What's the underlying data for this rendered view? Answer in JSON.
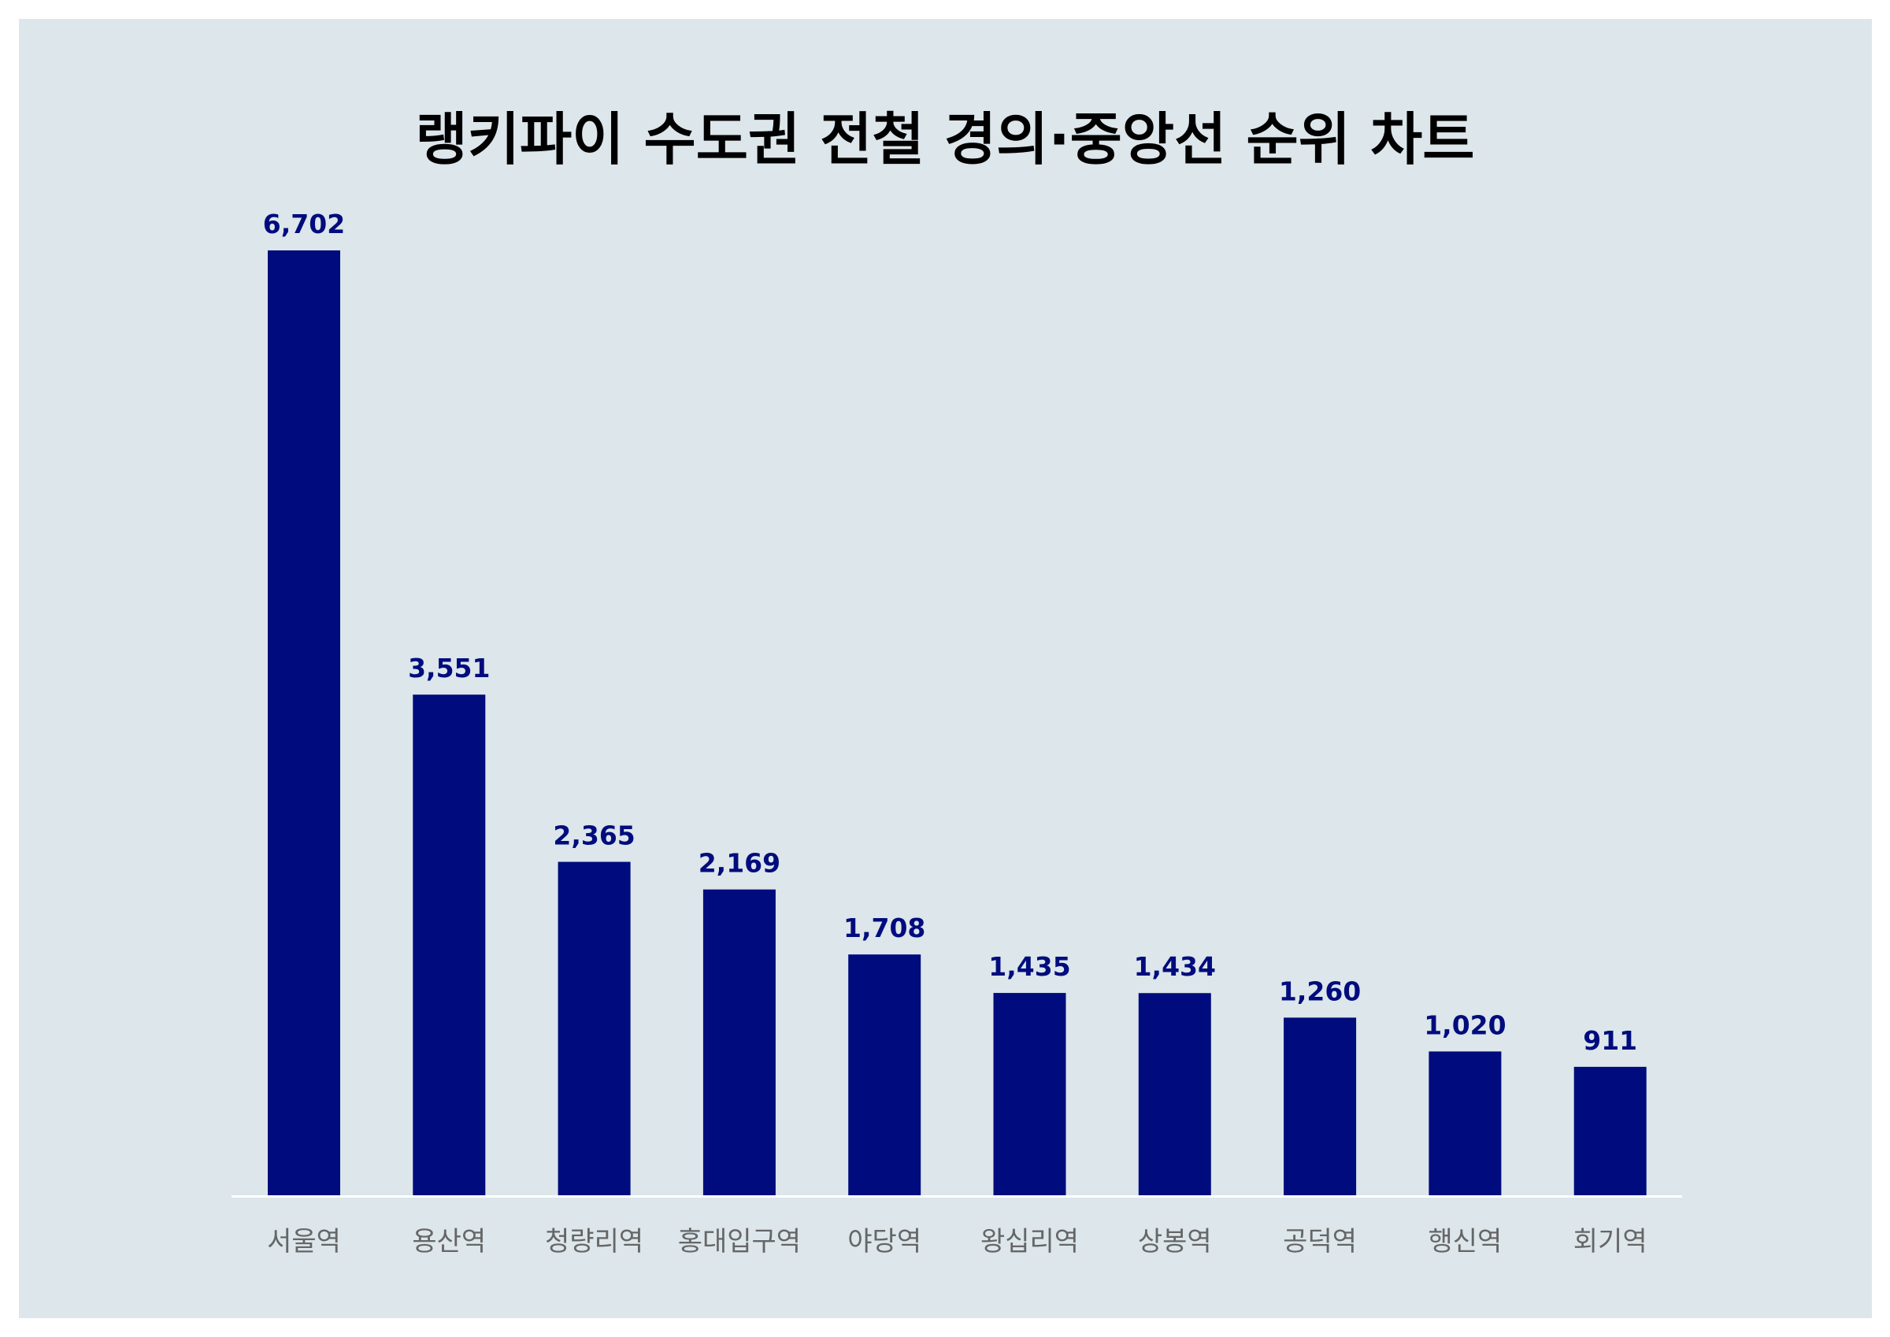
{
  "chart_data": {
    "type": "bar",
    "title": "랭키파이 수도권 전철 경의·중앙선 순위 차트",
    "categories": [
      "서울역",
      "용산역",
      "청량리역",
      "홍대입구역",
      "야당역",
      "왕십리역",
      "상봉역",
      "공덕역",
      "행신역",
      "회기역"
    ],
    "values": [
      6702,
      3551,
      2365,
      2169,
      1708,
      1435,
      1434,
      1260,
      1020,
      911
    ],
    "value_labels": [
      "6,702",
      "3,551",
      "2,365",
      "2,169",
      "1,708",
      "1,435",
      "1,434",
      "1,260",
      "1,020",
      "911"
    ],
    "xlabel": "",
    "ylabel": "",
    "ylim": [
      0,
      6702
    ],
    "grid": false,
    "legend": "none"
  },
  "colors": {
    "background": "#dce6eb",
    "bar": "#000c7d",
    "value_label": "#000c7d",
    "category_label": "#666666",
    "baseline": "#ffffff",
    "title": "#000000"
  }
}
